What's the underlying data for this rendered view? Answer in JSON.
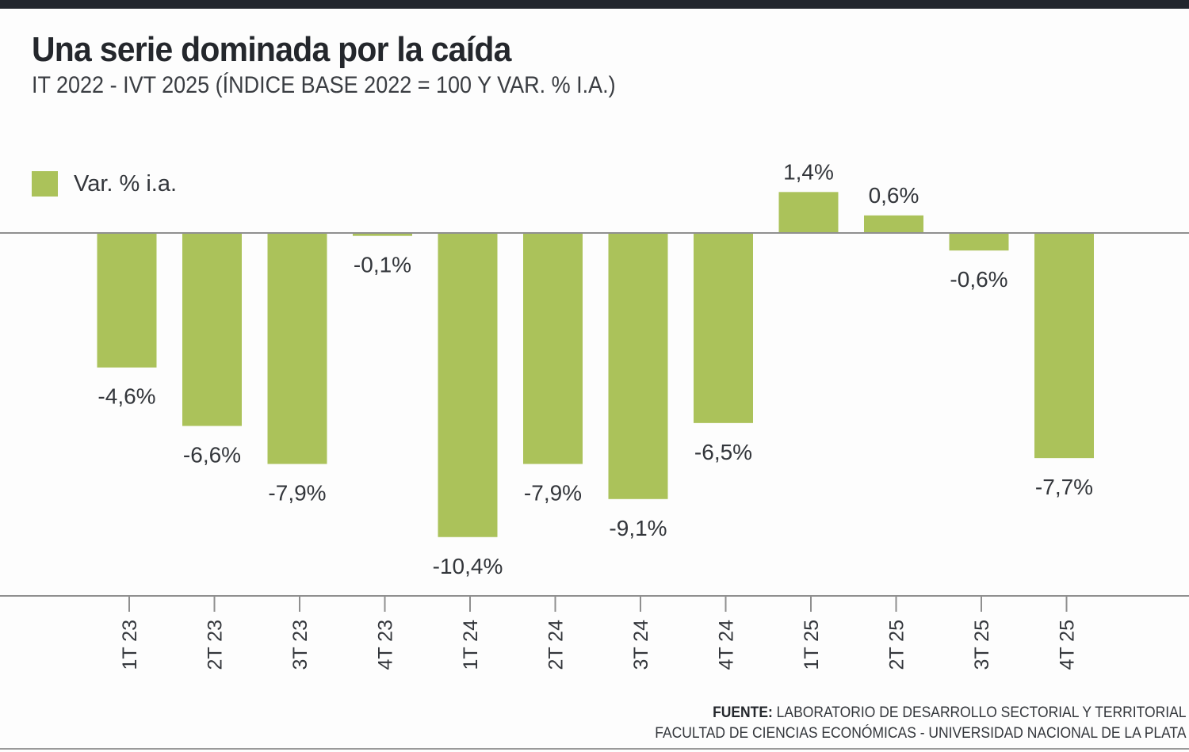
{
  "chart_data": {
    "type": "bar",
    "title": "Una serie dominada por la caída",
    "subtitle": "IT 2022 - IVT 2025 (ÍNDICE BASE 2022 = 100 Y VAR. % I.A.)",
    "xlabel": "",
    "ylabel": "",
    "legend": {
      "position": "top-left",
      "entries": [
        "Var. % i.a."
      ]
    },
    "grid": false,
    "ylim": [
      -12.4,
      2.0
    ],
    "categories": [
      "1T 23",
      "2T 23",
      "3T 23",
      "4T 23",
      "1T 24",
      "2T 24",
      "3T 24",
      "4T 24",
      "1T 25",
      "2T 25",
      "3T 25",
      "4T 25"
    ],
    "series": [
      {
        "name": "Var. % i.a.",
        "color": "#abc25a",
        "values": [
          -4.6,
          -6.6,
          -7.9,
          -0.1,
          -10.4,
          -7.9,
          -9.1,
          -6.5,
          1.4,
          0.6,
          -0.6,
          -7.7
        ],
        "labels": [
          "-4,6%",
          "-6,6%",
          "-7,9%",
          "-0,1%",
          "-10,4%",
          "-7,9%",
          "-9,1%",
          "-6,5%",
          "1,4%",
          "0,6%",
          "-0,6%",
          "-7,7%"
        ]
      }
    ]
  },
  "header": {
    "title": "Una serie dominada por la caída",
    "subtitle": "IT 2022 - IVT 2025 (ÍNDICE BASE 2022 = 100 Y VAR. % I.A.)"
  },
  "legend": {
    "label": "Var. % i.a."
  },
  "source": {
    "prefix": "FUENTE:",
    "line1": " LABORATORIO DE DESARROLLO SECTORIAL Y TERRITORIAL",
    "line2": "FACULTAD DE CIENCIAS ECONÓMICAS - UNIVERSIDAD NACIONAL DE LA PLATA"
  },
  "colors": {
    "bar": "#abc25a",
    "text": "#33363b",
    "axis": "#8f8f8f",
    "topbar": "#22262d"
  }
}
